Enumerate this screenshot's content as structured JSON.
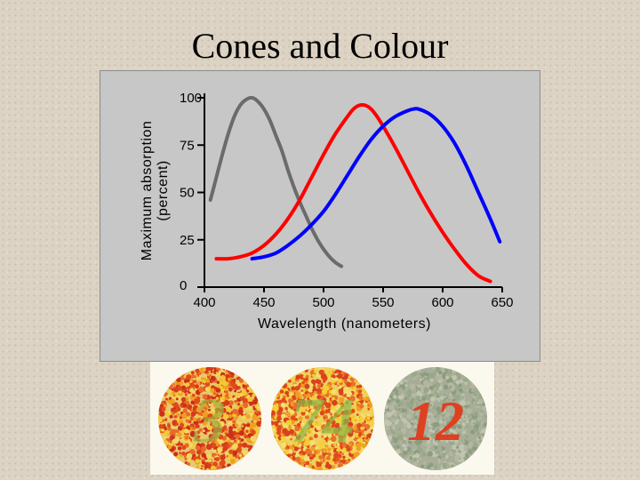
{
  "slide": {
    "title": "Cones and Colour"
  },
  "chart_data": {
    "type": "line",
    "xlabel": "Wavelength (nanometers)",
    "ylabel": [
      "Maximum absorption",
      "(percent)"
    ],
    "xlim": [
      400,
      650
    ],
    "ylim": [
      0,
      100
    ],
    "x_ticks": [
      400,
      450,
      500,
      550,
      600,
      650
    ],
    "y_ticks": [
      0,
      25,
      50,
      75,
      100
    ],
    "grid": false,
    "series": [
      {
        "color": "#6b6b6b",
        "points": [
          [
            405,
            46
          ],
          [
            410,
            58
          ],
          [
            415,
            70
          ],
          [
            420,
            81
          ],
          [
            425,
            90
          ],
          [
            430,
            96
          ],
          [
            435,
            99
          ],
          [
            440,
            100
          ],
          [
            445,
            98
          ],
          [
            450,
            94
          ],
          [
            455,
            88
          ],
          [
            460,
            80
          ],
          [
            465,
            72
          ],
          [
            470,
            62
          ],
          [
            475,
            53
          ],
          [
            480,
            45
          ],
          [
            485,
            38
          ],
          [
            490,
            31
          ],
          [
            495,
            25
          ],
          [
            500,
            20
          ],
          [
            505,
            16
          ],
          [
            510,
            13
          ],
          [
            515,
            11
          ]
        ]
      },
      {
        "color": "#ff0000",
        "points": [
          [
            410,
            15
          ],
          [
            420,
            15
          ],
          [
            430,
            16
          ],
          [
            440,
            18
          ],
          [
            450,
            22
          ],
          [
            460,
            28
          ],
          [
            470,
            36
          ],
          [
            480,
            46
          ],
          [
            490,
            58
          ],
          [
            500,
            70
          ],
          [
            510,
            81
          ],
          [
            520,
            90
          ],
          [
            525,
            94
          ],
          [
            530,
            96
          ],
          [
            535,
            96
          ],
          [
            540,
            94
          ],
          [
            545,
            90
          ],
          [
            550,
            85
          ],
          [
            560,
            74
          ],
          [
            570,
            62
          ],
          [
            580,
            50
          ],
          [
            590,
            39
          ],
          [
            600,
            29
          ],
          [
            610,
            20
          ],
          [
            620,
            12
          ],
          [
            630,
            6
          ],
          [
            640,
            3
          ]
        ]
      },
      {
        "color": "#0000ff",
        "points": [
          [
            440,
            15
          ],
          [
            450,
            16
          ],
          [
            460,
            18
          ],
          [
            470,
            22
          ],
          [
            480,
            27
          ],
          [
            490,
            33
          ],
          [
            500,
            40
          ],
          [
            510,
            49
          ],
          [
            520,
            59
          ],
          [
            530,
            69
          ],
          [
            540,
            78
          ],
          [
            550,
            85
          ],
          [
            560,
            90
          ],
          [
            570,
            93
          ],
          [
            575,
            94
          ],
          [
            580,
            94
          ],
          [
            590,
            91
          ],
          [
            600,
            85
          ],
          [
            610,
            76
          ],
          [
            620,
            64
          ],
          [
            630,
            50
          ],
          [
            640,
            36
          ],
          [
            648,
            24
          ]
        ]
      }
    ]
  },
  "plates": [
    {
      "number": "3",
      "dots": [
        "#e04a1c",
        "#f0a020",
        "#d83a1a",
        "#f5c830",
        "#cc2e18",
        "#f2d860",
        "#e86a2a"
      ],
      "figure": "#9fb040",
      "bg": "#e8c870"
    },
    {
      "number": "74",
      "dots": [
        "#e04a1c",
        "#f0a020",
        "#f5d030",
        "#e87030",
        "#f2e070",
        "#d84020"
      ],
      "figure": "#8cb848",
      "bg": "#f0d060"
    },
    {
      "number": "12",
      "dots": [
        "#9aa888",
        "#b4b8a0",
        "#8c9c80",
        "#c0c4b0",
        "#a8ae98"
      ],
      "figure": "#e23a1a",
      "bg": "#a6ad98"
    }
  ]
}
